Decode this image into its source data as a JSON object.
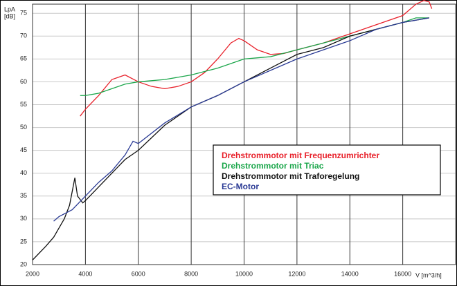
{
  "chart_data": {
    "type": "line",
    "y_label": "LpA",
    "y_unit": "[dB]",
    "x_label": "V [m^3/h]",
    "xlim": [
      2000,
      18000
    ],
    "xticks": [
      2000,
      4000,
      6000,
      8000,
      10000,
      12000,
      14000,
      16000
    ],
    "ylim": [
      20,
      77
    ],
    "yticks": [
      20,
      25,
      30,
      35,
      40,
      45,
      50,
      55,
      60,
      65,
      70,
      75
    ],
    "grid": true,
    "series": [
      {
        "name": "Drehstrommotor mit Frequenzumrichter",
        "color": "#e8202a",
        "x": [
          3800,
          4000,
          4500,
          5000,
          5500,
          6000,
          6500,
          7000,
          7500,
          8000,
          8500,
          9000,
          9500,
          9800,
          10000,
          10500,
          11000,
          11500,
          12000,
          13000,
          14000,
          15000,
          16000,
          16500,
          16800,
          17000,
          17100
        ],
        "values": [
          52.5,
          54,
          57,
          60.5,
          61.5,
          60,
          59,
          58.5,
          59,
          60,
          62,
          65,
          68.5,
          69.5,
          69,
          67,
          66,
          66.2,
          67,
          68.5,
          70.5,
          72.5,
          74.5,
          77,
          77.8,
          77.5,
          76
        ]
      },
      {
        "name": "Drehstrommotor mit Triac",
        "color": "#1aa64a",
        "x": [
          3800,
          4000,
          4500,
          5000,
          5500,
          6000,
          7000,
          8000,
          9000,
          10000,
          11000,
          12000,
          13000,
          14000,
          15000,
          16000,
          16500,
          17000
        ],
        "values": [
          57,
          57,
          57.5,
          58.5,
          59.5,
          60,
          60.5,
          61.5,
          63,
          65,
          65.5,
          67,
          68.5,
          70,
          71.5,
          73,
          74,
          74
        ]
      },
      {
        "name": "Drehstrommotor mit Traforegelung",
        "color": "#111111",
        "x": [
          2000,
          2500,
          2800,
          3000,
          3200,
          3400,
          3600,
          3700,
          3900,
          4000,
          4500,
          5000,
          5500,
          6000,
          7000,
          8000,
          9000,
          10000,
          11000,
          12000,
          13000,
          14000,
          15000,
          16000,
          17000
        ],
        "values": [
          21,
          24,
          26,
          28,
          30,
          33,
          39,
          35,
          33.5,
          34,
          37,
          40,
          43,
          45,
          50.5,
          54.5,
          57,
          60,
          63,
          66,
          67.5,
          70,
          71.5,
          73,
          74
        ]
      },
      {
        "name": "EC-Motor",
        "color": "#2a3a94",
        "x": [
          2800,
          3000,
          3500,
          4000,
          4500,
          5000,
          5500,
          5800,
          6000,
          7000,
          8000,
          9000,
          10000,
          11000,
          12000,
          13000,
          14000,
          15000,
          16000,
          17000
        ],
        "values": [
          29.5,
          30.5,
          32,
          35,
          38,
          40.5,
          44,
          47,
          46.5,
          51,
          54.5,
          57,
          60,
          62.5,
          65,
          67,
          69,
          71.5,
          73,
          74
        ]
      }
    ]
  }
}
